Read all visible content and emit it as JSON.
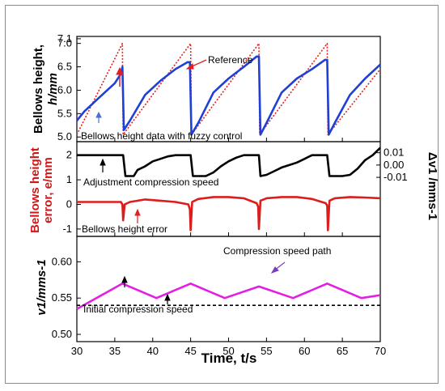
{
  "chart_data": [
    {
      "type": "line",
      "ylabel": [
        "Bellows height,",
        "h/mm"
      ],
      "ylim": [
        4.9,
        7.15
      ],
      "yticks": [
        "5.0",
        "5.5",
        "6.0",
        "6.5",
        "7.0",
        "7.1"
      ],
      "xlim": [
        30,
        70
      ],
      "annotations": {
        "reference": "Reference",
        "fuzzy": "Bellows height data with fuzzy control"
      },
      "series": [
        {
          "name": "Reference",
          "color": "#e02020",
          "dash": true,
          "x": [
            30,
            36,
            36.1,
            45,
            45.1,
            54,
            54.1,
            63,
            63.1,
            70
          ],
          "y": [
            5.05,
            7.0,
            5.05,
            7.0,
            5.05,
            7.0,
            5.05,
            7.0,
            5.05,
            6.45
          ]
        },
        {
          "name": "Bellows height data with fuzzy control",
          "color": "#1f3fd6",
          "dash": false,
          "x": [
            30,
            31,
            33,
            35,
            35.8,
            36.0,
            36.2,
            37,
            39,
            41,
            43,
            44.6,
            44.9,
            45.1,
            46,
            48,
            50,
            52,
            53.7,
            54.0,
            54.2,
            55,
            57,
            59,
            61,
            62.7,
            63.0,
            63.2,
            64,
            66,
            68,
            70
          ],
          "y": [
            5.35,
            5.55,
            5.85,
            6.15,
            6.35,
            6.5,
            5.15,
            5.35,
            5.9,
            6.2,
            6.45,
            6.6,
            6.6,
            5.05,
            5.3,
            5.95,
            6.25,
            6.5,
            6.72,
            6.72,
            5.05,
            5.3,
            5.95,
            6.25,
            6.45,
            6.65,
            6.65,
            5.05,
            5.3,
            5.9,
            6.25,
            6.55
          ]
        }
      ]
    },
    {
      "type": "line",
      "ylabel": [
        "Bellows height",
        "error, e/mm"
      ],
      "ylabel_right": "Δv1 /mms-1",
      "ylim": [
        -1.3,
        2.55
      ],
      "yticks": [
        "-1",
        "0",
        "1",
        "2"
      ],
      "yticks_right": [
        "0.01",
        "0.00",
        "-0.01"
      ],
      "xlim": [
        30,
        70
      ],
      "annotations": {
        "adjust": "Adjustment compression speed",
        "error": "Bellows height error"
      },
      "series": [
        {
          "name": "Adjustment compression speed",
          "color": "#000000",
          "dash": false,
          "x": [
            30,
            36.1,
            36.4,
            37.5,
            38,
            39,
            40,
            41,
            42,
            43,
            44,
            45,
            45.3,
            47,
            48,
            49,
            50,
            51,
            52,
            53,
            54,
            54.2,
            55,
            56,
            57,
            58,
            59,
            60,
            61,
            62,
            63,
            63.3,
            65,
            66,
            67,
            68,
            69,
            70
          ],
          "y": [
            2.0,
            2.0,
            1.15,
            1.15,
            1.4,
            1.55,
            1.75,
            1.85,
            1.95,
            2.0,
            2.0,
            2.0,
            1.15,
            1.15,
            1.3,
            1.55,
            1.75,
            1.9,
            2.0,
            2.0,
            2.0,
            1.15,
            1.2,
            1.35,
            1.5,
            1.6,
            1.7,
            1.85,
            2.0,
            2.0,
            2.0,
            1.15,
            1.15,
            1.2,
            1.45,
            1.8,
            2.0,
            2.3
          ]
        },
        {
          "name": "Bellows height error",
          "color": "#dd1c1c",
          "dash": false,
          "x": [
            30,
            35.8,
            36.0,
            36.1,
            36.3,
            37,
            39,
            41,
            43,
            44.7,
            44.9,
            45.0,
            45.2,
            46,
            48,
            50,
            52,
            53.7,
            53.9,
            54.0,
            54.2,
            55,
            57,
            59,
            61,
            62.8,
            63.0,
            63.1,
            63.3,
            64,
            66,
            68,
            70
          ],
          "y": [
            0.1,
            0.1,
            0.0,
            -0.65,
            0.0,
            0.1,
            0.2,
            0.15,
            0.1,
            0.0,
            -0.2,
            -1.05,
            0.1,
            0.22,
            0.3,
            0.3,
            0.25,
            0.05,
            -0.1,
            -1.0,
            0.15,
            0.25,
            0.3,
            0.3,
            0.22,
            0.05,
            -0.05,
            -1.05,
            0.15,
            0.25,
            0.3,
            0.28,
            0.25
          ]
        }
      ]
    },
    {
      "type": "line",
      "ylabel": [
        "v1/mms-1"
      ],
      "ylim": [
        0.49,
        0.635
      ],
      "yticks": [
        "0.50",
        "0.55",
        "0.60"
      ],
      "xlim": [
        30,
        70
      ],
      "xlabel": "Time, t/s",
      "xticks": [
        "30",
        "35",
        "40",
        "45",
        "50",
        "55",
        "60",
        "65",
        "70"
      ],
      "annotations": {
        "path": "Compression speed path",
        "initial": "Initial compression speed"
      },
      "series": [
        {
          "name": "Compression speed path",
          "color": "#e21fe2",
          "dash": false,
          "x": [
            30,
            36,
            40.5,
            45,
            49.5,
            54,
            58.5,
            63,
            67.5,
            70
          ],
          "y": [
            0.535,
            0.57,
            0.55,
            0.57,
            0.55,
            0.566,
            0.55,
            0.57,
            0.55,
            0.554
          ]
        },
        {
          "name": "Initial compression speed",
          "color": "#000000",
          "dash": true,
          "x": [
            30,
            70
          ],
          "y": [
            0.54,
            0.54
          ]
        }
      ]
    }
  ],
  "colors": {
    "red": "#e02020",
    "blue": "#1f3fd6",
    "black": "#000000",
    "magenta": "#e21fe2",
    "arrow_purple": "#7a3fbf",
    "arrow_blue": "#4a6fd0"
  }
}
